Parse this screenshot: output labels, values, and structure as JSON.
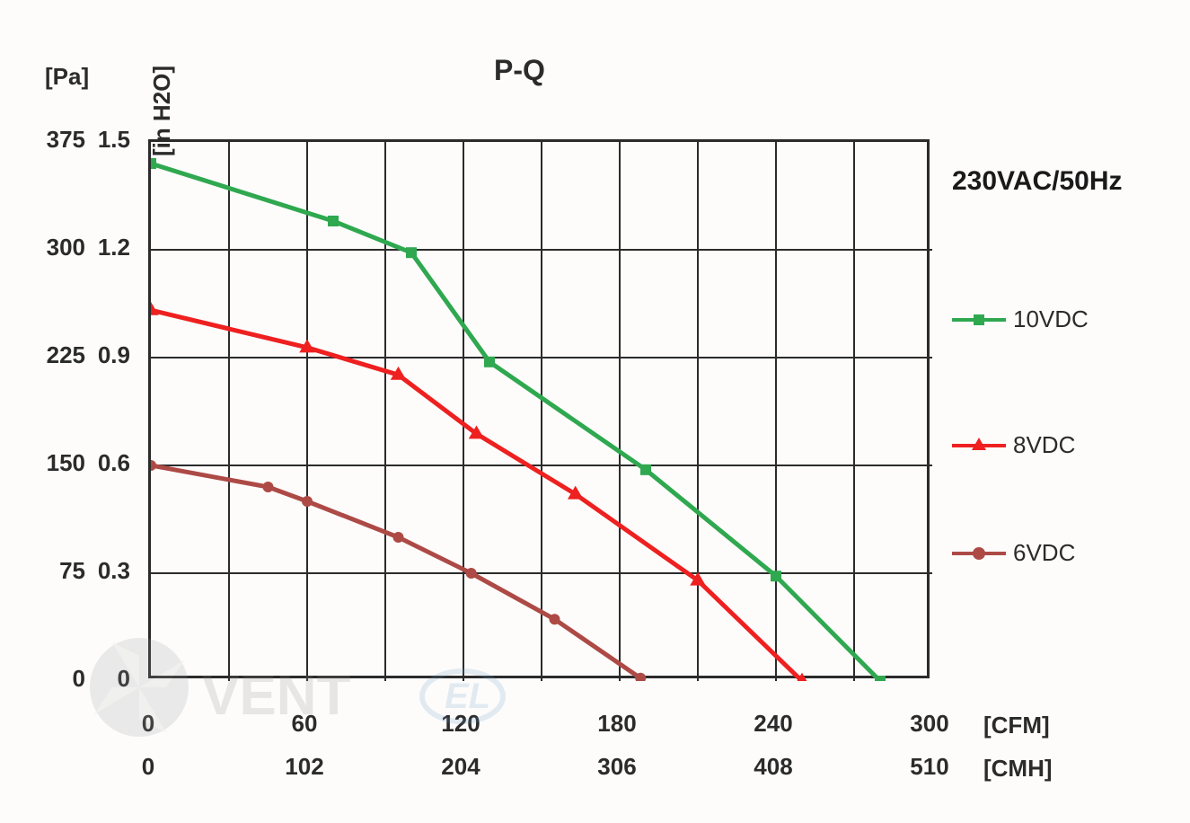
{
  "chart": {
    "title": "P-Q",
    "legend_title": "230VAC/50Hz",
    "y_axis": {
      "label_pa": "[Pa]",
      "label_inh2o": "[in H2O]",
      "ticks_pa": [
        0,
        75,
        150,
        225,
        300,
        375
      ],
      "ticks_inh2o": [
        "0",
        "0.3",
        "0.6",
        "0.9",
        "1.2",
        "1.5"
      ],
      "ylim": [
        0,
        375
      ]
    },
    "x_axis": {
      "label_cfm": "[CFM]",
      "label_cmh": "[CMH]",
      "ticks_cfm": [
        0,
        60,
        120,
        180,
        240,
        300
      ],
      "ticks_cmh": [
        0,
        102,
        204,
        306,
        408,
        510
      ],
      "xlim": [
        0,
        300
      ]
    },
    "series": [
      {
        "name": "10VDC",
        "color": "#2fa84f",
        "marker": "square",
        "marker_size": 12,
        "line_width": 5,
        "data": [
          {
            "x": 0,
            "y": 360
          },
          {
            "x": 70,
            "y": 320
          },
          {
            "x": 100,
            "y": 298
          },
          {
            "x": 130,
            "y": 222
          },
          {
            "x": 190,
            "y": 147
          },
          {
            "x": 240,
            "y": 73
          },
          {
            "x": 280,
            "y": 0
          }
        ]
      },
      {
        "name": "8VDC",
        "color": "#ee2020",
        "marker": "triangle",
        "marker_size": 14,
        "line_width": 5,
        "data": [
          {
            "x": 0,
            "y": 258
          },
          {
            "x": 60,
            "y": 232
          },
          {
            "x": 95,
            "y": 213
          },
          {
            "x": 125,
            "y": 172
          },
          {
            "x": 163,
            "y": 130
          },
          {
            "x": 210,
            "y": 70
          },
          {
            "x": 250,
            "y": 0
          }
        ]
      },
      {
        "name": "6VDC",
        "color": "#ad4a46",
        "marker": "circle",
        "marker_size": 12,
        "line_width": 5,
        "data": [
          {
            "x": 0,
            "y": 150
          },
          {
            "x": 45,
            "y": 135
          },
          {
            "x": 60,
            "y": 125
          },
          {
            "x": 95,
            "y": 100
          },
          {
            "x": 123,
            "y": 75
          },
          {
            "x": 155,
            "y": 43
          },
          {
            "x": 188,
            "y": 2
          }
        ]
      }
    ],
    "grid_color": "#2b2b2b",
    "grid_stroke": 2,
    "background_color": "#ffffff"
  },
  "watermark_text": "VENTEL"
}
